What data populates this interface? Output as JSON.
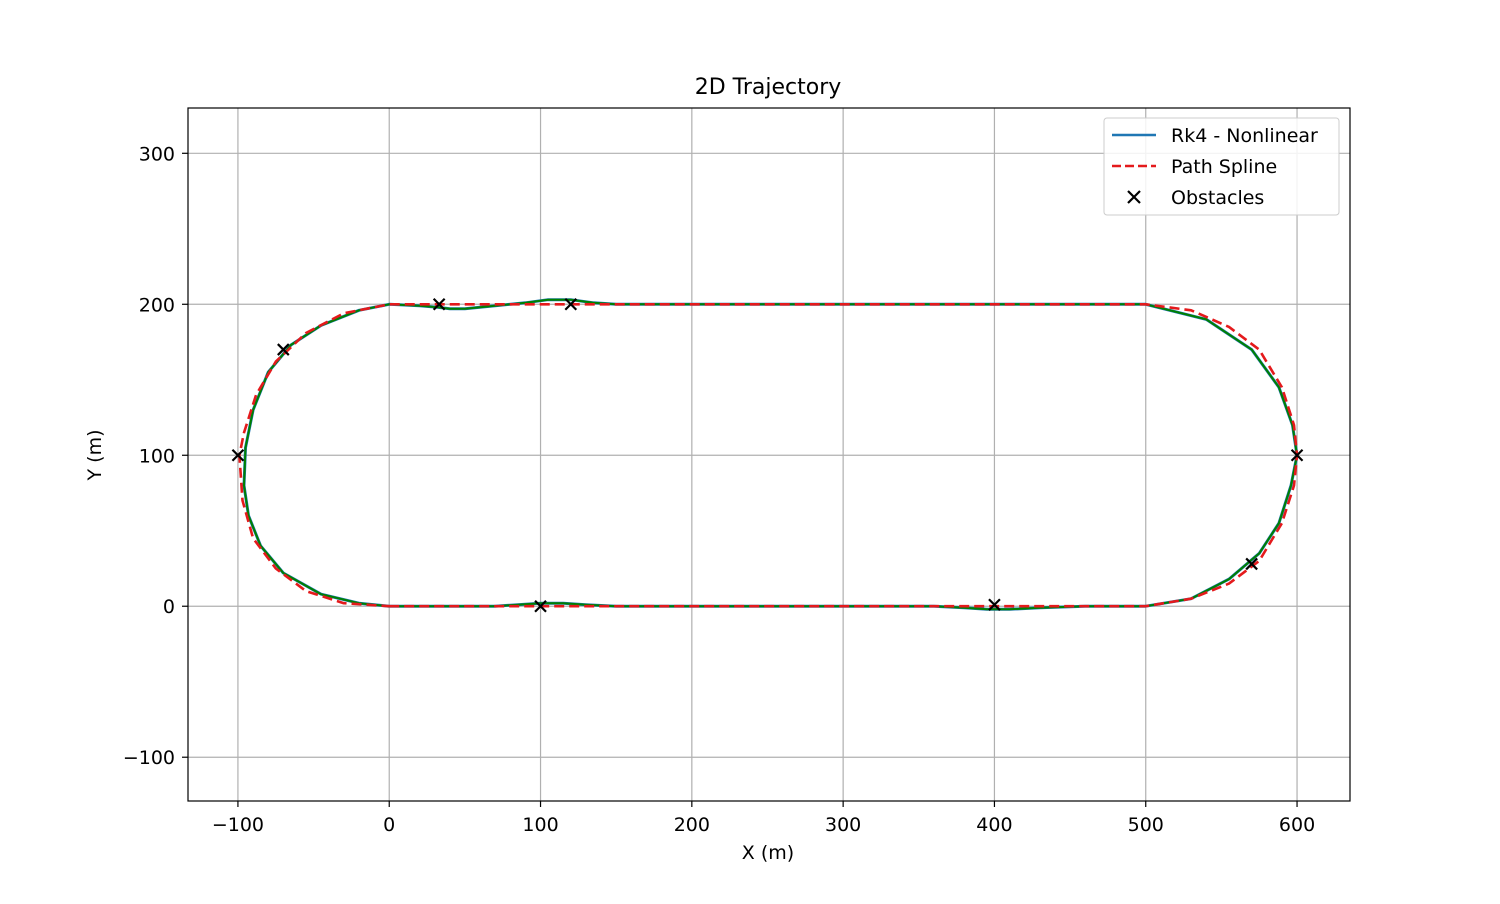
{
  "chart_data": {
    "type": "line",
    "title": "2D Trajectory",
    "xlabel": "X (m)",
    "ylabel": "Y (m)",
    "xlim": [
      -133,
      635
    ],
    "ylim": [
      -129,
      330
    ],
    "xticks": [
      -100,
      0,
      100,
      200,
      300,
      400,
      500,
      600
    ],
    "yticks": [
      -100,
      0,
      100,
      200,
      300
    ],
    "xtick_labels": [
      "−100",
      "0",
      "100",
      "200",
      "300",
      "400",
      "500",
      "600"
    ],
    "ytick_labels": [
      "−100",
      "0",
      "100",
      "200",
      "300"
    ],
    "grid": true,
    "legend_position": "top-right",
    "legend": [
      {
        "label": "Rk4 - Nonlinear",
        "style": "solid",
        "color": "#1f77b4"
      },
      {
        "label": "Path Spline",
        "style": "dashed",
        "color": "#e41a1c"
      },
      {
        "label": "Obstacles",
        "style": "marker-x",
        "color": "#000000"
      }
    ],
    "series": [
      {
        "name": "Rk4 - Nonlinear",
        "color": "#1f77b4",
        "overlay_color": "#008000",
        "x": [
          0,
          50,
          70,
          85,
          100,
          115,
          130,
          150,
          200,
          300,
          360,
          380,
          395,
          410,
          430,
          460,
          500,
          530,
          555,
          575,
          588,
          596,
          600,
          597,
          588,
          570,
          540,
          500,
          300,
          200,
          150,
          135,
          120,
          105,
          90,
          70,
          50,
          40,
          32,
          20,
          0,
          -20,
          -45,
          -65,
          -80,
          -90,
          -95,
          -96,
          -93,
          -85,
          -70,
          -45,
          -20,
          0
        ],
        "y": [
          0,
          0,
          0,
          1,
          2,
          2,
          1,
          0,
          0,
          0,
          0,
          -1,
          -2,
          -2,
          -1,
          0,
          0,
          5,
          18,
          35,
          55,
          80,
          100,
          120,
          145,
          170,
          190,
          200,
          200,
          200,
          200,
          201,
          203,
          203,
          201,
          199,
          197,
          197,
          198,
          199,
          200,
          196,
          186,
          173,
          155,
          130,
          105,
          80,
          60,
          40,
          22,
          8,
          2,
          0
        ]
      },
      {
        "name": "Path Spline",
        "color": "#e41a1c",
        "x": [
          0,
          100,
          200,
          300,
          400,
          500,
          530,
          555,
          575,
          590,
          598,
          600,
          598,
          590,
          575,
          555,
          530,
          500,
          300,
          200,
          100,
          0,
          -30,
          -55,
          -75,
          -88,
          -96,
          -99,
          -97,
          -90,
          -75,
          -55,
          -30,
          0
        ],
        "y": [
          0,
          0,
          0,
          0,
          0,
          0,
          5,
          15,
          30,
          55,
          80,
          100,
          120,
          145,
          170,
          185,
          196,
          200,
          200,
          200,
          200,
          200,
          194,
          181,
          162,
          140,
          115,
          100,
          70,
          45,
          25,
          10,
          2,
          0
        ]
      }
    ],
    "obstacles": {
      "name": "Obstacles",
      "x": [
        33,
        120,
        -70,
        -100,
        100,
        400,
        570,
        600
      ],
      "y": [
        200,
        200,
        170,
        100,
        0,
        1,
        28,
        100
      ]
    }
  }
}
